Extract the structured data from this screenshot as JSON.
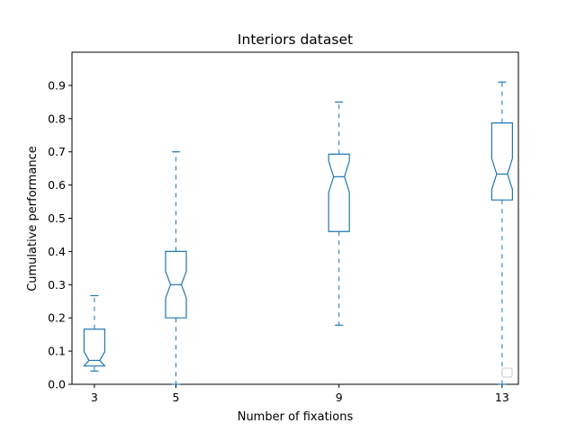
{
  "chart_data": {
    "type": "box",
    "title": "Interiors dataset",
    "xlabel": "Number of fixations",
    "ylabel": "Cumulative performance",
    "x_ticks": [
      3,
      5,
      9,
      13
    ],
    "y_ticks": [
      "0.0",
      "0.1",
      "0.2",
      "0.3",
      "0.4",
      "0.5",
      "0.6",
      "0.7",
      "0.8",
      "0.9"
    ],
    "xlim": [
      2.45,
      13.4
    ],
    "ylim": [
      0,
      1.0
    ],
    "color": "#1f77b4",
    "notched": true,
    "whisker_style": "dashed",
    "legend": "lower-right, empty",
    "boxes": [
      {
        "x": 3,
        "whisker_low": 0.04,
        "q1": 0.055,
        "median": 0.072,
        "q3": 0.166,
        "whisker_high": 0.267,
        "notch_low": 0.055,
        "notch_high": 0.098
      },
      {
        "x": 5,
        "whisker_low": 0.0,
        "q1": 0.2,
        "median": 0.3,
        "q3": 0.4,
        "whisker_high": 0.7,
        "notch_low": 0.26,
        "notch_high": 0.34
      },
      {
        "x": 9,
        "whisker_low": 0.178,
        "q1": 0.46,
        "median": 0.625,
        "q3": 0.693,
        "whisker_high": 0.85,
        "notch_low": 0.578,
        "notch_high": 0.672
      },
      {
        "x": 13,
        "whisker_low": 0.0,
        "q1": 0.555,
        "median": 0.633,
        "q3": 0.787,
        "whisker_high": 0.91,
        "notch_low": 0.587,
        "notch_high": 0.68
      }
    ]
  }
}
